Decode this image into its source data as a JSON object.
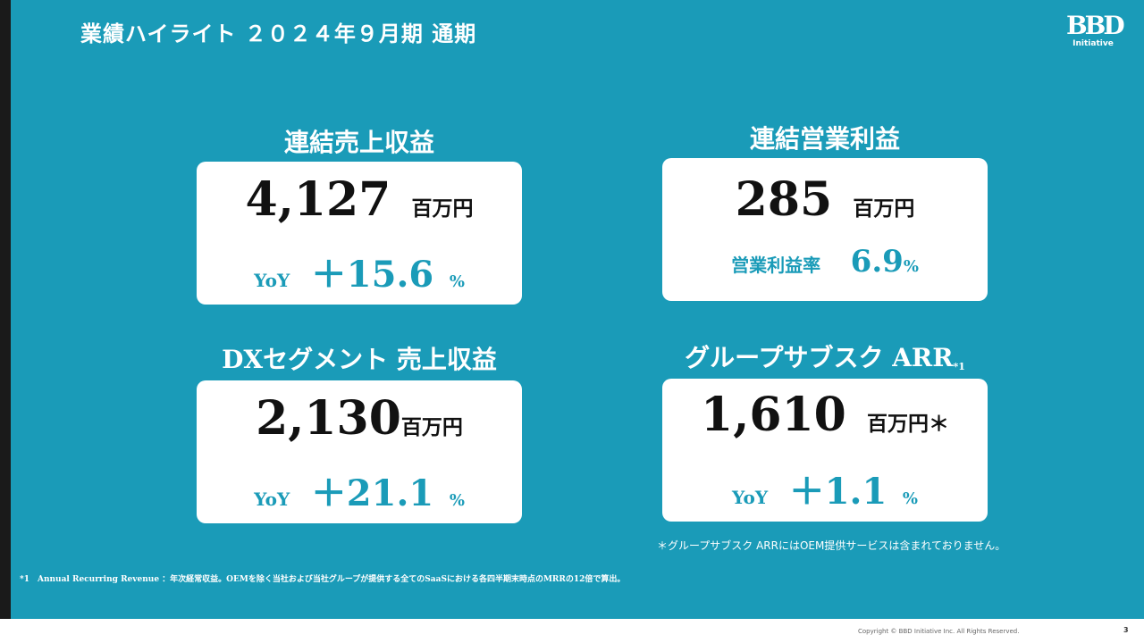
{
  "header": {
    "title": "業績ハイライト ２０２４年９月期 通期"
  },
  "logo": {
    "mark": "BBD",
    "sub": "Initiative"
  },
  "kpis": {
    "revenue": {
      "title": "連結売上収益",
      "value": "4,127",
      "unit": "百万円",
      "label": "YoY",
      "change": "＋15.6",
      "pct": "%"
    },
    "op_profit": {
      "title": "連結営業利益",
      "value": "285",
      "unit": "百万円",
      "label": "営業利益率",
      "change": "6.9",
      "pct": "%"
    },
    "dx": {
      "title": "DXセグメント 売上収益",
      "value": "2,130",
      "unit": "百万円",
      "label": "YoY",
      "change": "＋21.1",
      "pct": "%"
    },
    "arr": {
      "title": "グループサブスク ARR",
      "title_sup": "*1",
      "value": "1,610",
      "unit": "百万円＊",
      "label": "YoY",
      "change": "＋1.1",
      "pct": "%"
    }
  },
  "notes": {
    "arr_note": "＊グループサブスク ARRにはOEM提供サービスは含まれておりません。",
    "footnote": "*1　Annual Recurring Revenue ：年次経常収益。OEMを除く当社および当社グループが提供する全てのSaaSにおける各四半期末時点のMRRの12倍で算出。"
  },
  "footer": {
    "copyright": "Copyright © BBD Initiative Inc. All Rights Reserved.",
    "page": "3"
  },
  "colors": {
    "background": "#1a9bb8",
    "accent": "#1a9bb8",
    "card": "#ffffff"
  }
}
